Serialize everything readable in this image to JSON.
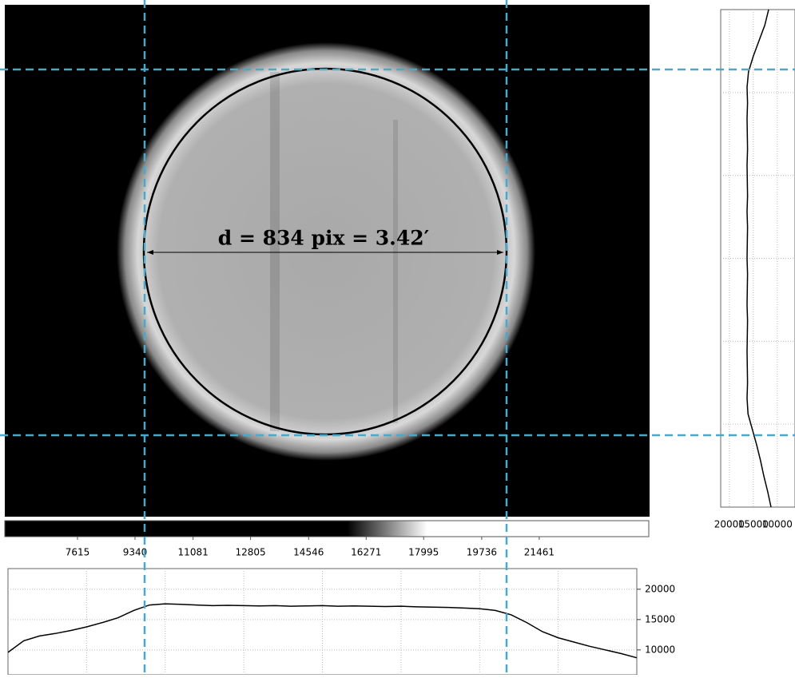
{
  "image": {
    "annotation": "d = 834 pix = 3.42′",
    "colorbar": {
      "ticks": [
        7615,
        9340,
        11081,
        12805,
        14546,
        16271,
        17995,
        19736,
        21461
      ],
      "lim": [
        5435,
        24746
      ],
      "color_range": [
        15700,
        18100
      ]
    }
  },
  "chart_data": [
    {
      "type": "line",
      "color": "#000000",
      "grid": true,
      "values": [
        9600,
        11500,
        12300,
        12700,
        13200,
        13800,
        14500,
        15300,
        16500,
        17400,
        17600,
        17500,
        17400,
        17300,
        17350,
        17300,
        17250,
        17300,
        17200,
        17250,
        17300,
        17200,
        17250,
        17200,
        17150,
        17200,
        17100,
        17050,
        17000,
        16900,
        16800,
        16500,
        15800,
        14500,
        13000,
        12000,
        11300,
        10600,
        10000,
        9400,
        8700
      ],
      "ylim": [
        5900,
        23400
      ],
      "yticks": [
        10000,
        15000,
        20000
      ]
    },
    {
      "type": "line",
      "orientation": "vertical",
      "color": "#000000",
      "grid": true,
      "values": [
        11800,
        12600,
        13800,
        15000,
        16000,
        16300,
        16200,
        16300,
        16250,
        16200,
        16300,
        16250,
        16200,
        16300,
        16200,
        16250,
        16300,
        16200,
        16250,
        16300,
        16200,
        16250,
        16300,
        16250,
        16200,
        16300,
        16100,
        15200,
        14300,
        13500,
        12800,
        12000,
        11300
      ],
      "xlim": [
        21800,
        6300
      ],
      "xticks": [
        20000,
        15000,
        10000
      ]
    }
  ]
}
